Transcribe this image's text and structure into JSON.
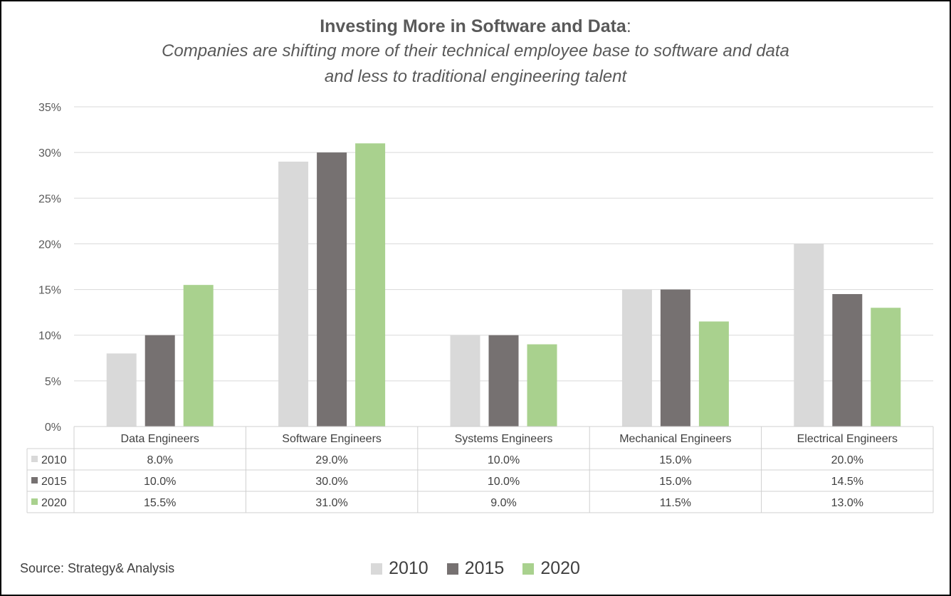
{
  "chart_data": {
    "type": "bar",
    "title": "Investing More in Software and Data",
    "title_suffix": ":",
    "subtitle_lines": [
      "Companies are shifting more of their technical employee base to software and data",
      "and less to traditional engineering talent"
    ],
    "categories": [
      "Data Engineers",
      "Software Engineers",
      "Systems Engineers",
      "Mechanical Engineers",
      "Electrical Engineers"
    ],
    "series": [
      {
        "name": "2010",
        "values": [
          8.0,
          29.0,
          10.0,
          15.0,
          20.0
        ],
        "color": "#d9d9d9"
      },
      {
        "name": "2015",
        "values": [
          10.0,
          30.0,
          10.0,
          15.0,
          14.5
        ],
        "color": "#767171"
      },
      {
        "name": "2020",
        "values": [
          15.5,
          31.0,
          9.0,
          11.5,
          13.0
        ],
        "color": "#a9d18e"
      }
    ],
    "ylim": [
      0,
      35
    ],
    "yticks": [
      0,
      5,
      10,
      15,
      20,
      25,
      30,
      35
    ],
    "ytick_labels": [
      "0%",
      "5%",
      "10%",
      "15%",
      "20%",
      "25%",
      "30%",
      "35%"
    ],
    "value_format": "one decimal percent",
    "data_table": true,
    "grid": true,
    "legend_position": "bottom",
    "source": "Source: Strategy& Analysis"
  }
}
